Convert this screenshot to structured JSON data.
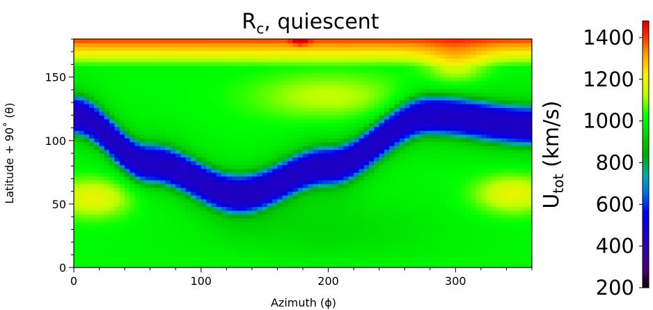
{
  "chart_data": {
    "type": "heatmap",
    "title_main": "R",
    "title_sub": "c",
    "title_rest": ", quiescent",
    "xlabel": "Azimuth (ϕ)",
    "ylabel": "Latitude + 90˚ (θ)",
    "xlim": [
      0,
      360
    ],
    "ylim": [
      0,
      180
    ],
    "xticks": [
      0,
      100,
      200,
      300
    ],
    "yticks": [
      0,
      50,
      100,
      150
    ],
    "colorbar": {
      "label_main": "U",
      "label_sub": "tot",
      "label_rest": " (km/s)",
      "range": [
        200,
        1480
      ],
      "ticks": [
        200,
        400,
        600,
        800,
        1000,
        1200,
        1400
      ],
      "colormap": "nipy_spectral"
    },
    "field": {
      "description_points": [
        {
          "azimuth": 0,
          "lat": 120,
          "value": 450
        },
        {
          "azimuth": 60,
          "lat": 82,
          "value": 450
        },
        {
          "azimuth": 130,
          "lat": 58,
          "value": 450
        },
        {
          "azimuth": 200,
          "lat": 80,
          "value": 450
        },
        {
          "azimuth": 280,
          "lat": 120,
          "value": 450
        },
        {
          "azimuth": 360,
          "lat": 112,
          "value": 450
        }
      ]
    }
  }
}
